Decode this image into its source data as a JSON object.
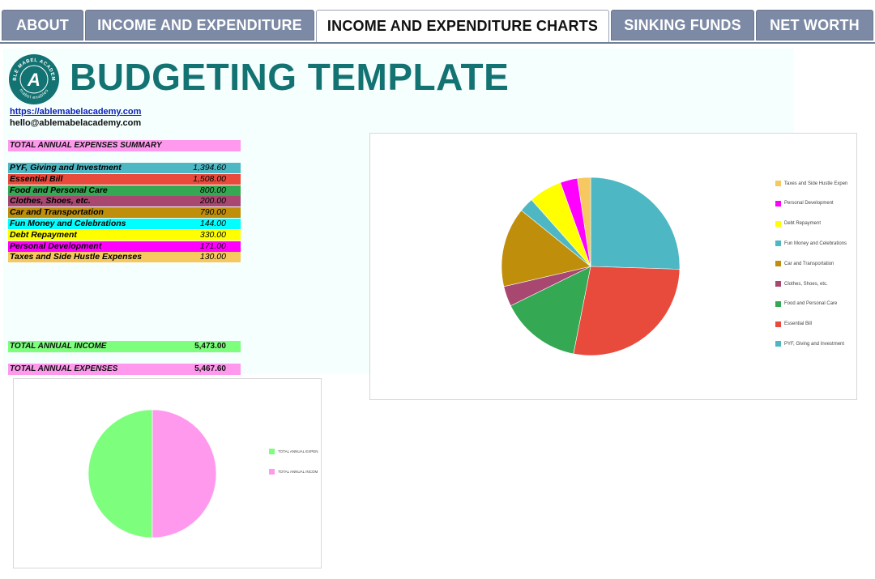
{
  "tabs": [
    {
      "label": "ABOUT",
      "active": false
    },
    {
      "label": "INCOME AND EXPENDITURE",
      "active": false
    },
    {
      "label": "INCOME AND EXPENDITURE CHARTS",
      "active": true
    },
    {
      "label": "SINKING FUNDS",
      "active": false
    },
    {
      "label": "NET WORTH",
      "active": false
    }
  ],
  "header": {
    "title": "BUDGETING TEMPLATE",
    "logo_ring_text": "ABLE MABEL ACADEMY",
    "logo_bottom_text": "mabel enables",
    "logo_letter": "A",
    "website": "https://ablemabelacademy.com",
    "email": "hello@ablemabelacademy.com"
  },
  "summary": {
    "heading": "TOTAL ANNUAL EXPENSES SUMMARY",
    "rows": [
      {
        "label": "PYF, Giving and Investment",
        "value": "1,394.60",
        "color": "#4db8c4"
      },
      {
        "label": "Essential Bill",
        "value": "1,508.00",
        "color": "#e84a3c"
      },
      {
        "label": "Food and Personal Care",
        "value": "800.00",
        "color": "#34a853"
      },
      {
        "label": "Clothes, Shoes, etc.",
        "value": "200.00",
        "color": "#a84871"
      },
      {
        "label": "Car and Transportation",
        "value": "790.00",
        "color": "#bf8e0b"
      },
      {
        "label": "Fun Money and Celebrations",
        "value": "144.00",
        "color": "#00ffff"
      },
      {
        "label": "Debt Repayment",
        "value": "330.00",
        "color": "#ffff00"
      },
      {
        "label": "Personal Development",
        "value": "171.00",
        "color": "#ff00ff"
      },
      {
        "label": "Taxes and Side Hustle Expenses",
        "value": "130.00",
        "color": "#f6c85f"
      }
    ],
    "income_label": "TOTAL ANNUAL INCOME",
    "income_value": "5,473.00",
    "income_color": "#7dff7d",
    "expenses_label": "TOTAL ANNUAL EXPENSES",
    "expenses_value": "5,467.60",
    "expenses_color": "#ff99ee"
  },
  "chart_data": [
    {
      "type": "pie",
      "title": "",
      "slices": [
        {
          "label": "PYF, Giving and Investment",
          "value": 1394.6,
          "color": "#4db8c4"
        },
        {
          "label": "Essential Bill",
          "value": 1508.0,
          "color": "#e84a3c"
        },
        {
          "label": "Food and Personal Care",
          "value": 800.0,
          "color": "#34a853"
        },
        {
          "label": "Clothes, Shoes, etc.",
          "value": 200.0,
          "color": "#a84871"
        },
        {
          "label": "Car and Transportation",
          "value": 790.0,
          "color": "#bf8e0b"
        },
        {
          "label": "Fun Money and Celebrations",
          "value": 144.0,
          "color": "#4db8c4"
        },
        {
          "label": "Debt Repayment",
          "value": 330.0,
          "color": "#ffff00"
        },
        {
          "label": "Personal Development",
          "value": 171.0,
          "color": "#ff00ff"
        },
        {
          "label": "Taxes and Side Hustle Expenses",
          "value": 130.0,
          "color": "#f6c85f"
        }
      ],
      "legend": [
        {
          "label": "Taxes and Side Hustle Expen",
          "color": "#f6c85f"
        },
        {
          "label": "Personal Development",
          "color": "#ff00ff"
        },
        {
          "label": "Debt Repayment",
          "color": "#ffff00"
        },
        {
          "label": "Fun Money and Celebrations",
          "color": "#4db8c4"
        },
        {
          "label": "Car and Transportation",
          "color": "#bf8e0b"
        },
        {
          "label": "Clothes, Shoes, etc.",
          "color": "#a84871"
        },
        {
          "label": "Food and Personal Care",
          "color": "#34a853"
        },
        {
          "label": "Essential Bill",
          "color": "#e84a3c"
        },
        {
          "label": "PYF, Giving and Investment",
          "color": "#4db8c4"
        }
      ],
      "legend_position": "right"
    },
    {
      "type": "pie",
      "title": "",
      "slices": [
        {
          "label": "TOTAL ANNUAL INCOME",
          "value": 5473.0,
          "color": "#ff99ee"
        },
        {
          "label": "TOTAL ANNUAL EXPENSES",
          "value": 5467.6,
          "color": "#7dff7d"
        }
      ],
      "legend": [
        {
          "label": "TOTAL ANNUAL EXPEN",
          "color": "#7dff7d"
        },
        {
          "label": "TOTAL ANNUAL INCOM",
          "color": "#ff99ee"
        }
      ],
      "legend_position": "right"
    }
  ]
}
